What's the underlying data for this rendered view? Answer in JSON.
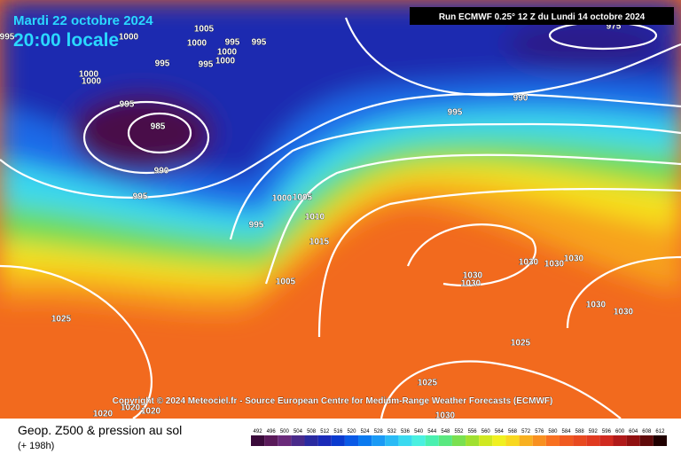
{
  "header": {
    "date": "Mardi 22 octobre 2024",
    "time": "20:00 locale",
    "run": "Run ECMWF 0.25° 12 Z du Lundi 14 octobre 2024"
  },
  "isobar_labels": [
    "995",
    "1005",
    "1000",
    "1000",
    "995",
    "995",
    "1000",
    "1000",
    "995",
    "995",
    "1000",
    "1000",
    "995",
    "985",
    "990",
    "995",
    "1000",
    "1005",
    "1010",
    "995",
    "1015",
    "1005",
    "975",
    "990",
    "995",
    "1030",
    "1030",
    "1030",
    "1030",
    "1030",
    "1030",
    "1030",
    "1025",
    "1025",
    "1025",
    "1020",
    "1020",
    "1020",
    "1030"
  ],
  "copyright": "Copyright © 2024 Meteociel.fr - Source European Centre for Medium-Range Weather Forecasts (ECMWF)",
  "footer": {
    "title": "Geop. Z500 & pression au sol",
    "lead": "(+ 198h)"
  },
  "scale": {
    "labels": [
      492,
      496,
      500,
      504,
      508,
      512,
      516,
      520,
      524,
      528,
      532,
      536,
      540,
      544,
      548,
      552,
      556,
      560,
      564,
      568,
      572,
      576,
      580,
      584,
      588,
      592,
      596,
      600,
      604,
      608,
      612
    ],
    "colors": [
      "#3a0a3a",
      "#5a1a5a",
      "#6a2a7a",
      "#4a2a8a",
      "#2a2aa0",
      "#1a2ab8",
      "#0a3acf",
      "#0a5ae6",
      "#0a7af0",
      "#1a9af5",
      "#2abaf5",
      "#3adaf0",
      "#4af0e0",
      "#4af0b0",
      "#5ae880",
      "#7ae050",
      "#a0e030",
      "#d0e820",
      "#f0f020",
      "#f8d820",
      "#f8b020",
      "#f89020",
      "#f87020",
      "#f05a20",
      "#e84a20",
      "#e03a20",
      "#d02a20",
      "#b01a1a",
      "#901010",
      "#600a0a",
      "#200000"
    ]
  }
}
